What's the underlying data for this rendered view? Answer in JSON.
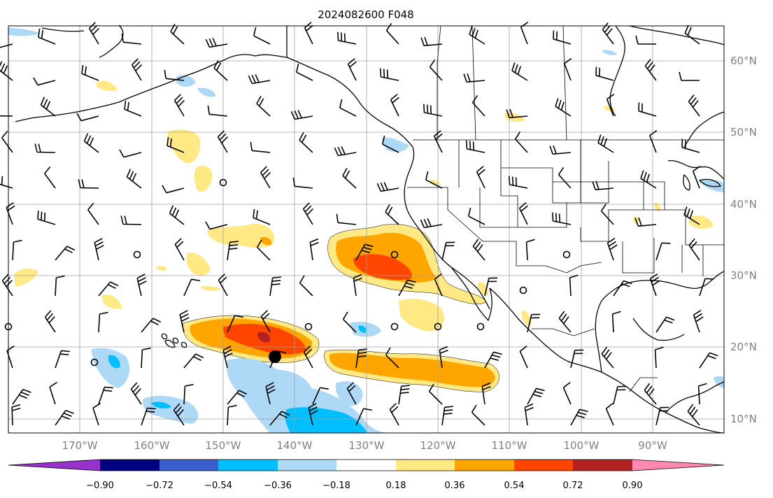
{
  "title": "2024082600 F048",
  "lat_labels": [
    "10°N",
    "20°N",
    "30°N",
    "40°N",
    "50°N",
    "60°N"
  ],
  "lon_labels": [
    "170°W",
    "160°W",
    "150°W",
    "140°W",
    "130°W",
    "120°W",
    "110°W",
    "100°W",
    "90°W"
  ],
  "colorbar": {
    "ticks": [
      "−0.90",
      "−0.72",
      "−0.54",
      "−0.36",
      "−0.18",
      "0.18",
      "0.36",
      "0.54",
      "0.72",
      "0.90"
    ],
    "colors": [
      "#9932cc",
      "#000080",
      "#3a5fcd",
      "#00bfff",
      "#add8f6",
      "#ffffff",
      "#ffe984",
      "#ffa500",
      "#ff4500",
      "#b22222",
      "#ff88b0"
    ]
  },
  "marker": "storm-center-dot"
}
